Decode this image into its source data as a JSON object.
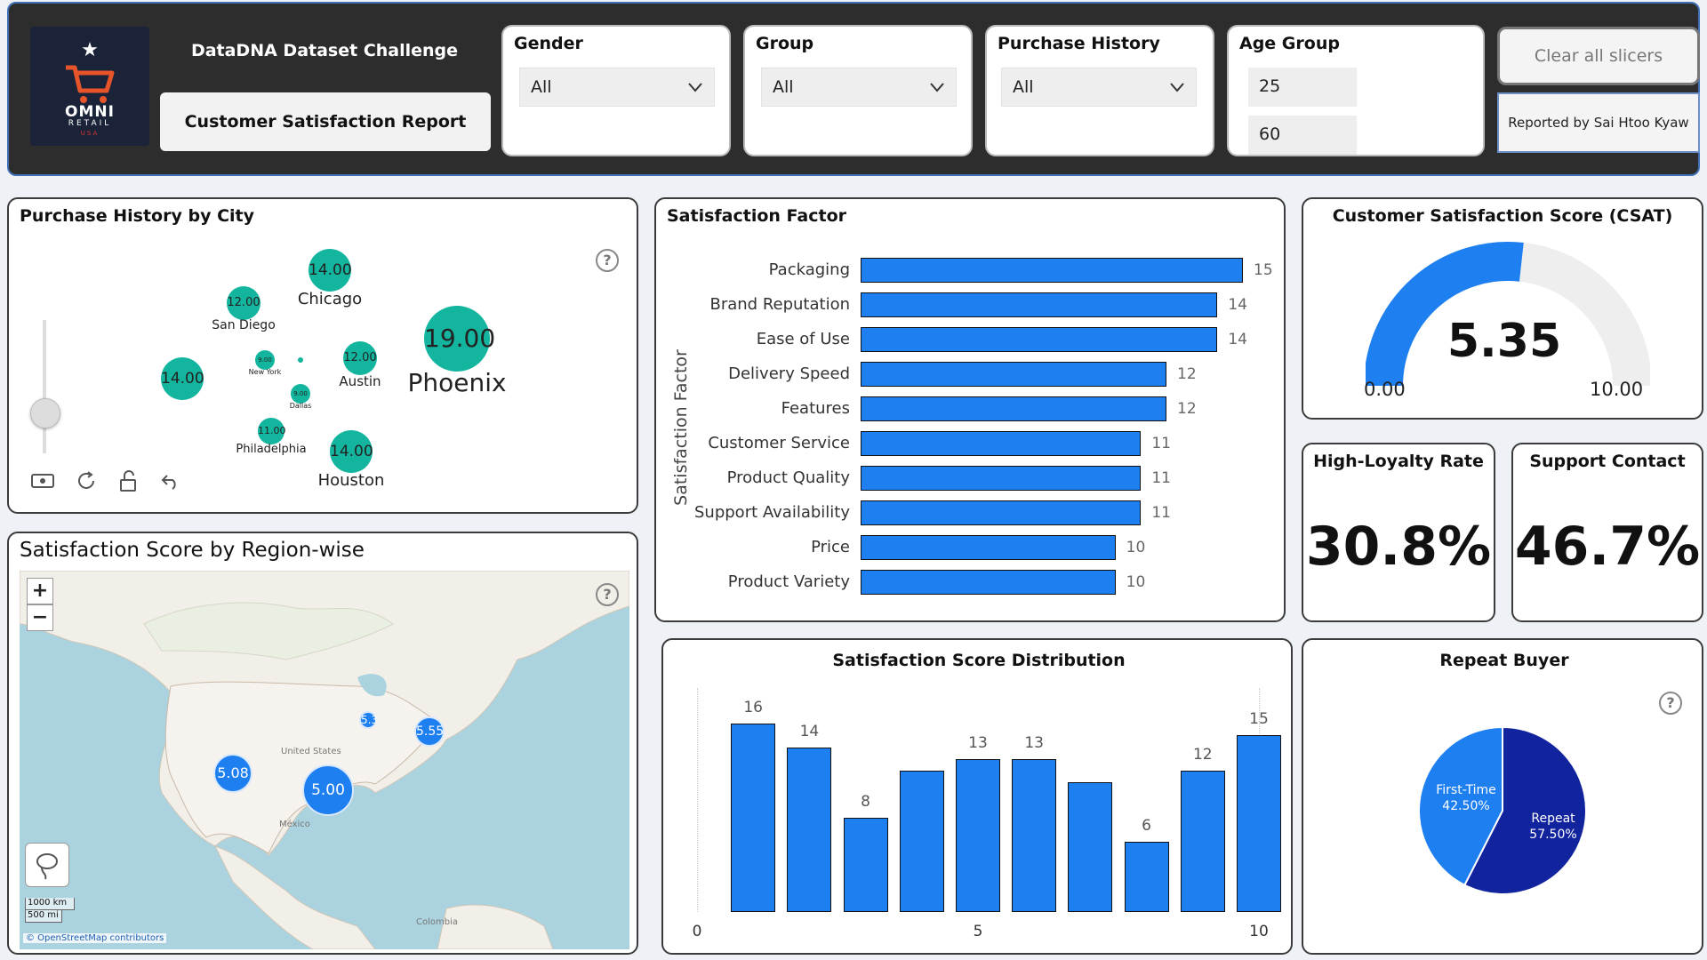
{
  "header": {
    "challenge": "DataDNA Dataset Challenge",
    "report_title": "Customer Satisfaction Report",
    "logo": {
      "name": "OMNI",
      "sub": "RETAIL",
      "usa": "USA"
    },
    "clear_label": "Clear all slicers",
    "reported_by": "Reported by Sai Htoo Kyaw",
    "slicers": [
      {
        "label": "Gender",
        "value": "All"
      },
      {
        "label": "Group",
        "value": "All"
      },
      {
        "label": "Purchase History",
        "value": "All"
      }
    ],
    "age_group": {
      "label": "Age Group",
      "min": "25",
      "max": "60"
    }
  },
  "purchase_city": {
    "title": "Purchase History by City",
    "bubbles": [
      {
        "city": "Chicago",
        "value": "14.00"
      },
      {
        "city": "San Diego",
        "value": "12.00"
      },
      {
        "city": "Phoenix",
        "value": "19.00"
      },
      {
        "city": "",
        "value": "14.00"
      },
      {
        "city": "New York",
        "value": "9.00"
      },
      {
        "city": "Austin",
        "value": "12.00"
      },
      {
        "city": "Dallas",
        "value": "9.00"
      },
      {
        "city": "Philadelphia",
        "value": "11.00"
      },
      {
        "city": "Houston",
        "value": "14.00"
      }
    ]
  },
  "satisfaction_factor": {
    "title": "Satisfaction Factor",
    "axis_label": "Satisfaction Factor",
    "bar_color": "#1e7ff0"
  },
  "csat": {
    "title": "Customer Satisfaction Score (CSAT)",
    "value": 5.35,
    "value_label": "5.35",
    "min_label": "0.00",
    "max_label": "10.00",
    "min": 0,
    "max": 10
  },
  "loyalty": {
    "title": "High-Loyalty Rate",
    "value": "30.8%"
  },
  "support": {
    "title": "Support Contact",
    "value": "46.7%"
  },
  "region_map": {
    "title": "Satisfaction Score by Region-wise",
    "zoom_in": "+",
    "zoom_out": "−",
    "scale_km": "1000 km",
    "scale_mi": "500 mi",
    "attribution": "© OpenStreetMap contributors",
    "country_label": "United States",
    "mexico_label": "México",
    "colombia_label": "Colombia",
    "points": [
      {
        "label": "5.08"
      },
      {
        "label": "5.00"
      },
      {
        "label": "5.3"
      },
      {
        "label": "5.55"
      }
    ]
  },
  "distribution": {
    "title": "Satisfaction Score Distribution"
  },
  "repeat_buyer": {
    "title": "Repeat Buyer",
    "slices": [
      {
        "label": "First-Time",
        "pct_label": "42.50%",
        "value": 42.5,
        "color": "#1e7ff0"
      },
      {
        "label": "Repeat",
        "pct_label": "57.50%",
        "value": 57.5,
        "color": "#12239e"
      }
    ]
  },
  "chart_data": [
    {
      "type": "bar",
      "orientation": "horizontal",
      "title": "Satisfaction Factor",
      "ylabel": "Satisfaction Factor",
      "categories": [
        "Packaging",
        "Brand Reputation",
        "Ease of Use",
        "Delivery Speed",
        "Features",
        "Customer Service",
        "Product Quality",
        "Support Availability",
        "Price",
        "Product Variety"
      ],
      "values": [
        15,
        14,
        14,
        12,
        12,
        11,
        11,
        11,
        10,
        10
      ]
    },
    {
      "type": "bar",
      "title": "Satisfaction Score Distribution",
      "x": [
        1,
        2,
        3,
        4,
        5,
        6,
        7,
        8,
        9,
        10
      ],
      "values": [
        16,
        14,
        8,
        12,
        13,
        13,
        11,
        6,
        12,
        15
      ],
      "data_labels": [
        "16",
        "14",
        "8",
        "",
        "13",
        "13",
        "",
        "6",
        "12",
        "15"
      ],
      "xticks": [
        "0",
        "5",
        "10"
      ],
      "xlim": [
        0,
        10
      ],
      "ylim": [
        0,
        16
      ]
    },
    {
      "type": "pie",
      "title": "Repeat Buyer",
      "categories": [
        "First-Time",
        "Repeat"
      ],
      "values": [
        42.5,
        57.5
      ]
    }
  ]
}
